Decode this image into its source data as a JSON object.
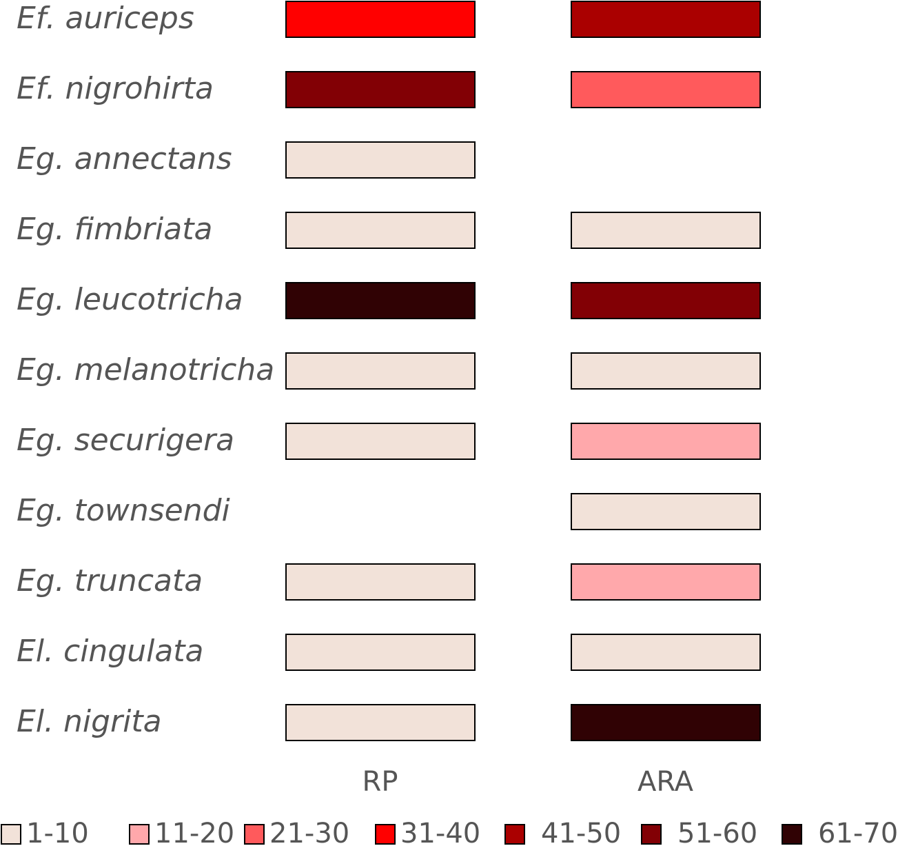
{
  "chart_data": {
    "type": "heatmap",
    "rows": [
      "Ef. auriceps",
      "Ef. nigrohirta",
      "Eg. annectans",
      "Eg. fimbriata",
      "Eg. leucotricha",
      "Eg. melanotricha",
      "Eg. securigera",
      "Eg. townsendi",
      "Eg. truncata",
      "El. cingulata",
      "El. nigrita"
    ],
    "columns": [
      "RP",
      "ARA"
    ],
    "values": [
      [
        "31-40",
        "41-50"
      ],
      [
        "51-60",
        "21-30"
      ],
      [
        "1-10",
        null
      ],
      [
        "1-10",
        "1-10"
      ],
      [
        "61-70",
        "51-60"
      ],
      [
        "1-10",
        "1-10"
      ],
      [
        "1-10",
        "11-20"
      ],
      [
        null,
        "1-10"
      ],
      [
        "1-10",
        "11-20"
      ],
      [
        "1-10",
        "1-10"
      ],
      [
        "1-10",
        "61-70"
      ]
    ],
    "legend": [
      {
        "label": "1-10",
        "color": "#F2E2D9"
      },
      {
        "label": "11-20",
        "color": "#FFA8AB"
      },
      {
        "label": "21-30",
        "color": "#FF5A5C"
      },
      {
        "label": "31-40",
        "color": "#FF0000"
      },
      {
        "label": "41-50",
        "color": "#AA0000"
      },
      {
        "label": "51-60",
        "color": "#820005"
      },
      {
        "label": "61-70",
        "color": "#300204"
      }
    ],
    "legend_position": "bottom"
  }
}
